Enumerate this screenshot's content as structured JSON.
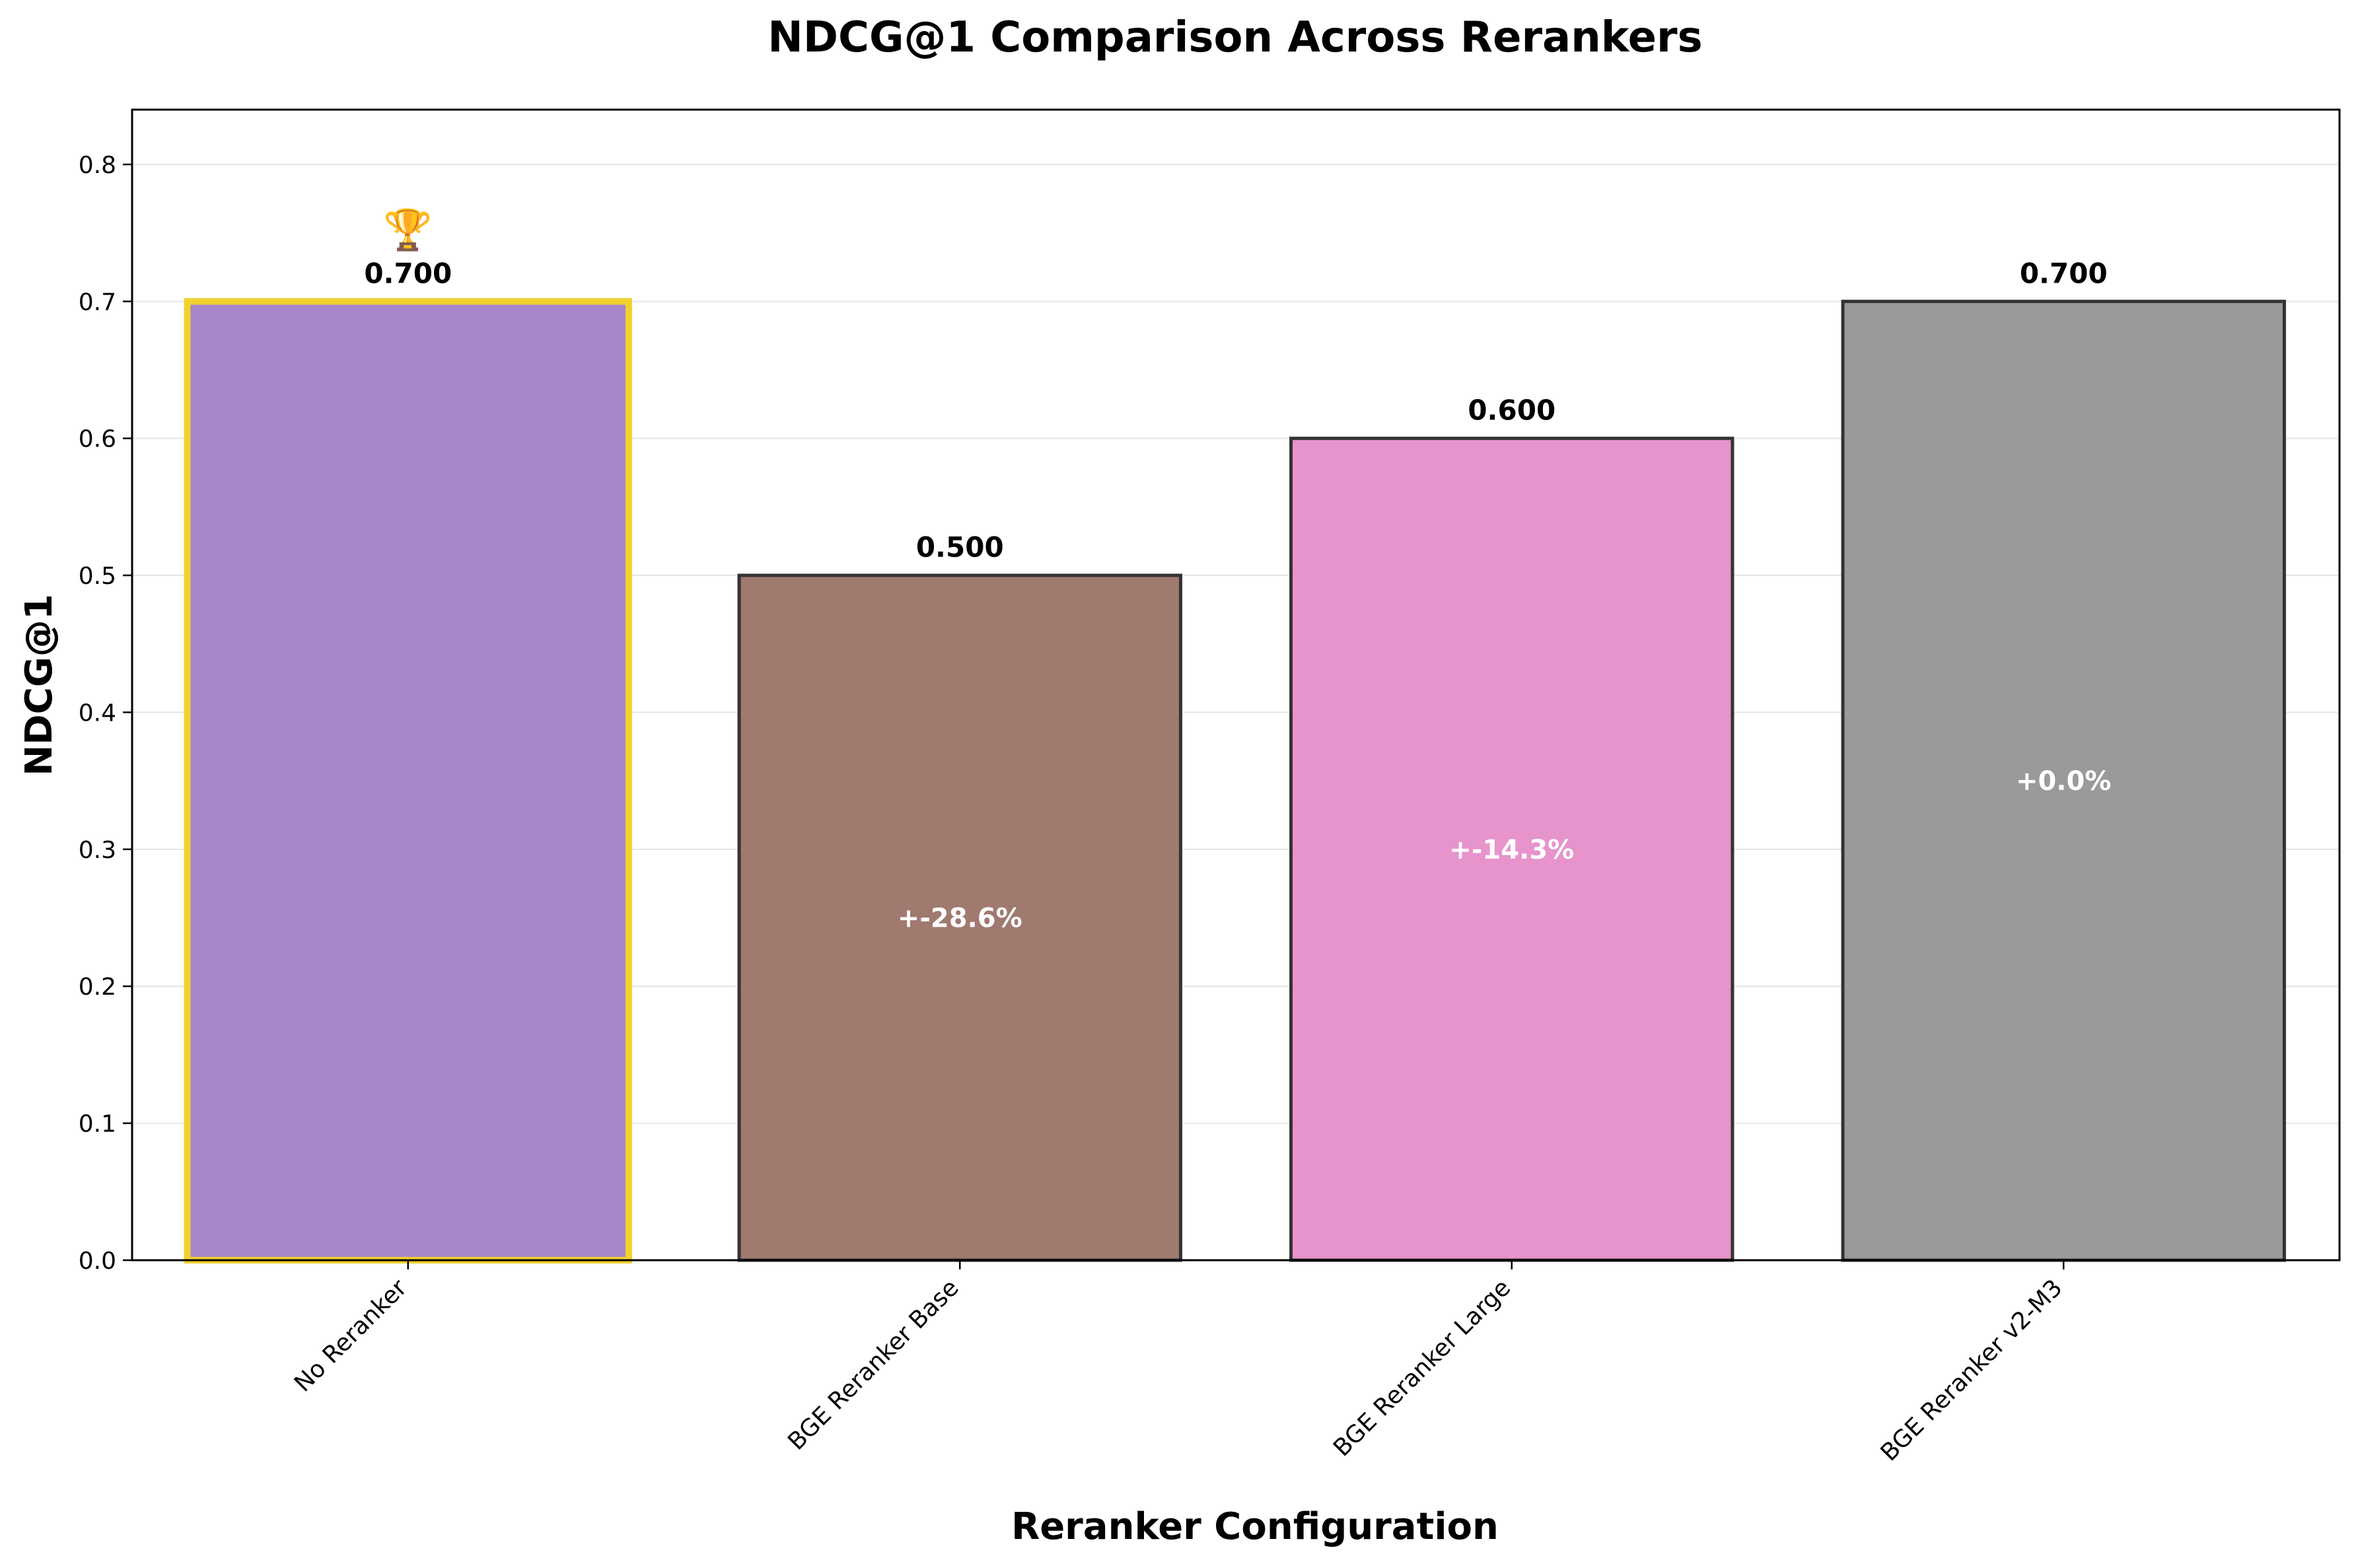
{
  "chart_data": {
    "type": "bar",
    "title": "NDCG@1 Comparison Across Rerankers",
    "xlabel": "Reranker Configuration",
    "ylabel": "NDCG@1",
    "ylim": [
      0,
      0.84
    ],
    "yticks": [
      "0.0",
      "0.1",
      "0.2",
      "0.3",
      "0.4",
      "0.5",
      "0.6",
      "0.7",
      "0.8"
    ],
    "ytick_values": [
      0,
      0.1,
      0.2,
      0.3,
      0.4,
      0.5,
      0.6,
      0.7,
      0.8
    ],
    "grid": "horizontal",
    "categories": [
      "No Reranker",
      "BGE Reranker Base",
      "BGE Reranker Large",
      "BGE Reranker v2-M3"
    ],
    "values": [
      0.7,
      0.5,
      0.6,
      0.7
    ],
    "value_labels": [
      "0.700",
      "0.500",
      "0.600",
      "0.700"
    ],
    "change_labels": [
      null,
      "+-28.6%",
      "+-14.3%",
      "+0.0%"
    ],
    "best_marker": {
      "index": 0,
      "glyph": "🏆"
    },
    "colors": [
      "#a786c9",
      "#a0796f",
      "#e794cc",
      "#9a9a9a"
    ],
    "best_edge_color": "#f2d12f",
    "edge_color": "#333333"
  }
}
